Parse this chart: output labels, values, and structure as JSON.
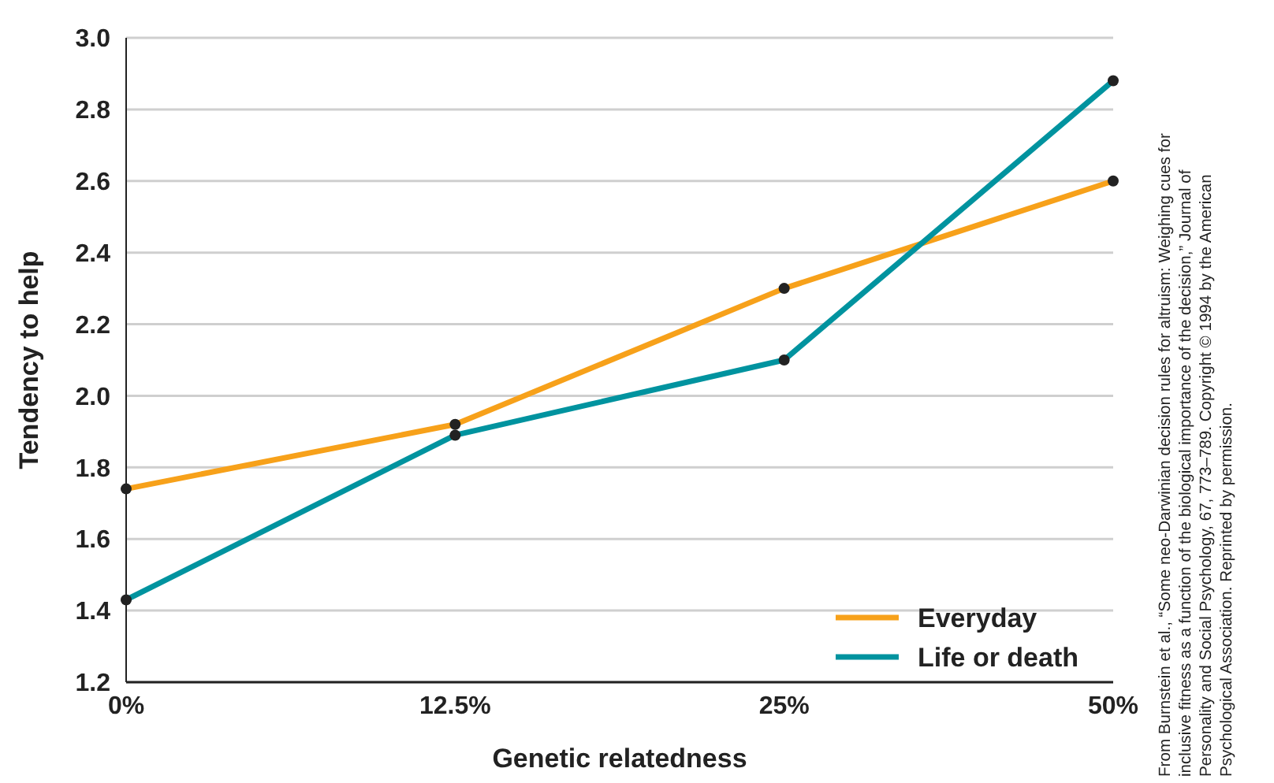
{
  "chart_data": {
    "type": "line",
    "xlabel": "Genetic relatedness",
    "ylabel": "Tendency to help",
    "categories": [
      "0%",
      "12.5%",
      "25%",
      "50%"
    ],
    "series": [
      {
        "name": "Everyday",
        "color": "#f7a11a",
        "values": [
          1.74,
          1.92,
          2.3,
          2.6
        ]
      },
      {
        "name": "Life or death",
        "color": "#00939f",
        "values": [
          1.43,
          1.89,
          2.1,
          2.88
        ]
      }
    ],
    "ylim": [
      1.2,
      3.0
    ],
    "yticks": [
      {
        "value": 1.2,
        "label": "1.2"
      },
      {
        "value": 1.4,
        "label": "1.4"
      },
      {
        "value": 1.6,
        "label": "1.6"
      },
      {
        "value": 1.8,
        "label": "1.8"
      },
      {
        "value": 2.0,
        "label": "2.0"
      },
      {
        "value": 2.2,
        "label": "2.2"
      },
      {
        "value": 2.4,
        "label": "2.4"
      },
      {
        "value": 2.6,
        "label": "2.6"
      },
      {
        "value": 2.8,
        "label": "2.8"
      },
      {
        "value": 3.0,
        "label": "3.0"
      }
    ],
    "grid": "y",
    "legend": "bottom right",
    "marker": "circle",
    "line_style": "solid",
    "annotations": [
      "From Burnstein et al., “Some neo-Darwinian decision rules for altruism: Weighing cues for inclusive fitness as a function of the biological importance of the decision,” Journal of Personality and Social Psychology, 67, 773–789. Copyright © 1994 by the American Psychological Association. Reprinted by permission."
    ]
  }
}
